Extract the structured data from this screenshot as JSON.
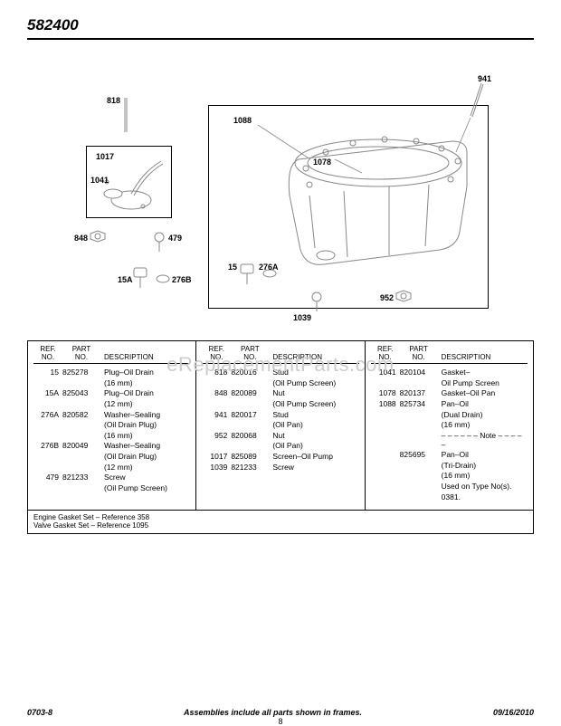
{
  "header": {
    "model": "582400"
  },
  "watermark": "eReplacementParts.com",
  "callouts": {
    "c941": "941",
    "c818": "818",
    "c1088": "1088",
    "c1078": "1078",
    "c1017": "1017",
    "c1041": "1041",
    "c848": "848",
    "c479": "479",
    "c15": "15",
    "c276A": "276A",
    "c15A": "15A",
    "c276B": "276B",
    "c1039": "1039",
    "c952": "952"
  },
  "col_head": {
    "ref1": "REF.",
    "ref2": "NO.",
    "part1": "PART",
    "part2": "NO.",
    "desc": "DESCRIPTION"
  },
  "columns": [
    [
      {
        "ref": "15",
        "part": "825278",
        "desc": "Plug–Oil Drain",
        "sub": "(16 mm)"
      },
      {
        "ref": "15A",
        "part": "825043",
        "desc": "Plug–Oil Drain",
        "sub": "(12 mm)"
      },
      {
        "ref": "276A",
        "part": "820582",
        "desc": "Washer–Sealing",
        "sub": "(Oil Drain Plug)",
        "sub2": "(16 mm)"
      },
      {
        "ref": "276B",
        "part": "820049",
        "desc": "Washer–Sealing",
        "sub": "(Oil Drain Plug)",
        "sub2": "(12 mm)"
      },
      {
        "ref": "479",
        "part": "821233",
        "desc": "Screw",
        "sub": "(Oil Pump Screen)"
      }
    ],
    [
      {
        "ref": "818",
        "part": "820016",
        "desc": "Stud",
        "sub": "(Oil Pump Screen)"
      },
      {
        "ref": "848",
        "part": "820089",
        "desc": "Nut",
        "sub": "(Oil Pump Screen)"
      },
      {
        "ref": "941",
        "part": "820017",
        "desc": "Stud",
        "sub": "(Oil Pan)"
      },
      {
        "ref": "952",
        "part": "820068",
        "desc": "Nut",
        "sub": "(Oil Pan)"
      },
      {
        "ref": "1017",
        "part": "825089",
        "desc": "Screen–Oil Pump"
      },
      {
        "ref": "1039",
        "part": "821233",
        "desc": "Screw"
      }
    ],
    [
      {
        "ref": "1041",
        "part": "820104",
        "desc": "Gasket–",
        "sub": "Oil Pump Screen"
      },
      {
        "ref": "1078",
        "part": "820137",
        "desc": "Gasket–Oil Pan"
      },
      {
        "ref": "1088",
        "part": "825734",
        "desc": "Pan–Oil",
        "sub": "(Dual Drain)",
        "sub2": "(16 mm)"
      },
      {
        "note": true,
        "text": "– – – – – – Note – – – – –"
      },
      {
        "ref": "",
        "part": "825695",
        "desc": "Pan–Oil",
        "sub": "(Tri-Drain)",
        "sub2": "(16 mm)",
        "sub3": "Used on Type No(s).",
        "sub4": "0381."
      }
    ]
  ],
  "bottom_notes": {
    "l1": "Engine Gasket Set – Reference 358",
    "l2": "Valve Gasket Set – Reference 1095"
  },
  "footer": {
    "left": "0703-8",
    "center": "Assemblies include all parts shown in frames.",
    "right": "09/16/2010",
    "page": "8"
  }
}
